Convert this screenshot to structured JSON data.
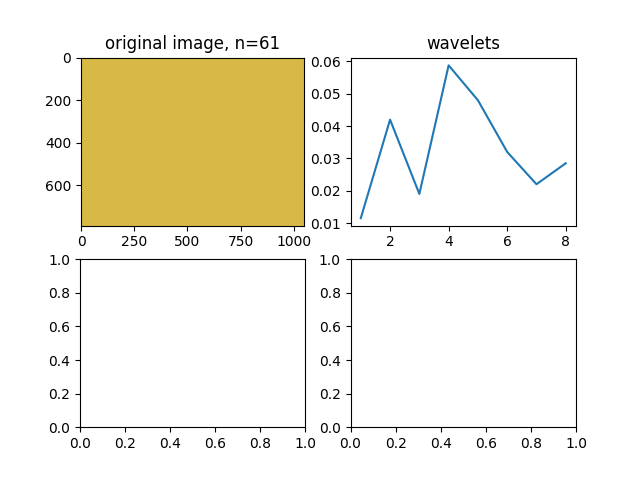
{
  "chart_data": [
    {
      "type": "image",
      "title": "original image, n=61",
      "xlim": [
        0,
        1050
      ],
      "ylim": [
        790,
        0
      ],
      "xticks": [
        0,
        250,
        500,
        750,
        1000
      ],
      "yticks": [
        0,
        200,
        400,
        600
      ]
    },
    {
      "type": "line",
      "title": "wavelets",
      "x": [
        1,
        2,
        3,
        4,
        5,
        6,
        7,
        8
      ],
      "values": [
        0.0115,
        0.042,
        0.019,
        0.0588,
        0.048,
        0.032,
        0.022,
        0.0285
      ],
      "color": "#1f77b4",
      "xlim": [
        0.65,
        8.35
      ],
      "ylim": [
        0.0092,
        0.0612
      ],
      "xticks": [
        2,
        4,
        6,
        8
      ],
      "yticks": [
        0.01,
        0.02,
        0.03,
        0.04,
        0.05,
        0.06
      ]
    },
    {
      "type": "empty",
      "xlim": [
        0,
        1
      ],
      "ylim": [
        0,
        1
      ],
      "xticks": [
        {
          "value": 0,
          "label": "0.0"
        },
        {
          "value": 0.2,
          "label": "0.2"
        },
        {
          "value": 0.4,
          "label": "0.4"
        },
        {
          "value": 0.6,
          "label": "0.6"
        },
        {
          "value": 0.8,
          "label": "0.8"
        },
        {
          "value": 1,
          "label": "1.0"
        }
      ],
      "yticks": [
        {
          "value": 0,
          "label": "0.0"
        },
        {
          "value": 0.2,
          "label": "0.2"
        },
        {
          "value": 0.4,
          "label": "0.4"
        },
        {
          "value": 0.6,
          "label": "0.6"
        },
        {
          "value": 0.8,
          "label": "0.8"
        },
        {
          "value": 1,
          "label": "1.0"
        }
      ]
    },
    {
      "type": "empty",
      "xlim": [
        0,
        1
      ],
      "ylim": [
        0,
        1
      ],
      "xticks": [
        {
          "value": 0,
          "label": "0.0"
        },
        {
          "value": 0.2,
          "label": "0.2"
        },
        {
          "value": 0.4,
          "label": "0.4"
        },
        {
          "value": 0.6,
          "label": "0.6"
        },
        {
          "value": 0.8,
          "label": "0.8"
        },
        {
          "value": 1,
          "label": "1.0"
        }
      ],
      "yticks": [
        {
          "value": 0,
          "label": "0.0"
        },
        {
          "value": 0.2,
          "label": "0.2"
        },
        {
          "value": 0.4,
          "label": "0.4"
        },
        {
          "value": 0.6,
          "label": "0.6"
        },
        {
          "value": 0.8,
          "label": "0.8"
        },
        {
          "value": 1,
          "label": "1.0"
        }
      ]
    }
  ]
}
